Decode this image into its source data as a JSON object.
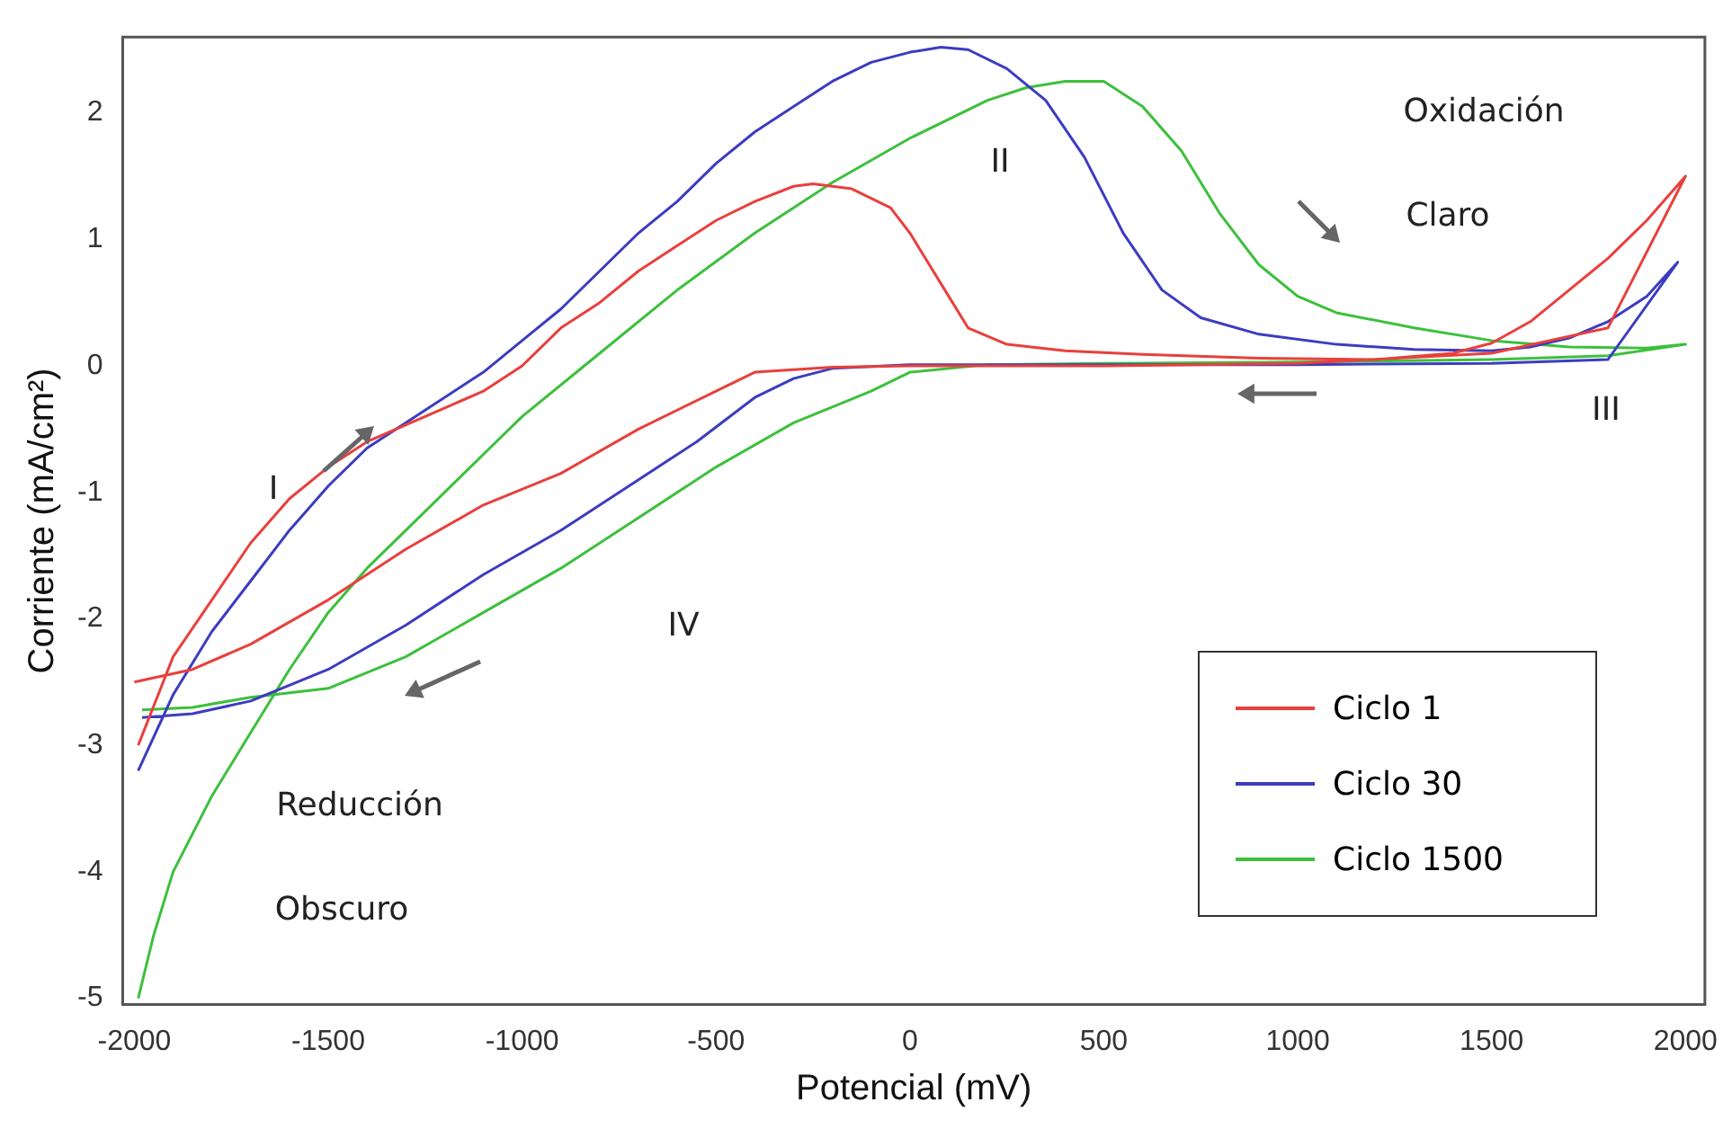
{
  "chart_data": {
    "type": "line",
    "xlabel": "Potencial (mV)",
    "ylabel": "Corriente (mA/cm²)",
    "xlim": [
      -2030,
      2050
    ],
    "ylim": [
      -5.05,
      2.6
    ],
    "xticks": [
      -2000,
      -1500,
      -1000,
      -500,
      0,
      500,
      1000,
      1500,
      2000
    ],
    "yticks": [
      -5,
      -4,
      -3,
      -2,
      -1,
      0,
      1,
      2
    ],
    "grid": false,
    "legend": "bottom right",
    "marker": "none",
    "line_style": "solid",
    "series": [
      {
        "name": "Ciclo 1",
        "color": "#e8403c",
        "x": [
          -1990,
          -1900,
          -1800,
          -1700,
          -1600,
          -1500,
          -1400,
          -1250,
          -1100,
          -1000,
          -900,
          -800,
          -700,
          -600,
          -500,
          -400,
          -300,
          -250,
          -150,
          -50,
          0,
          50,
          100,
          150,
          250,
          400,
          600,
          900,
          1200,
          1400,
          1500,
          1600,
          1700,
          1800,
          1900,
          2000,
          1800,
          1500,
          1000,
          500,
          0,
          -200,
          -400,
          -500,
          -700,
          -900,
          -1100,
          -1300,
          -1500,
          -1700,
          -1850,
          -2000
        ],
        "values": [
          -3.0,
          -2.3,
          -1.85,
          -1.4,
          -1.05,
          -0.8,
          -0.6,
          -0.4,
          -0.2,
          0.0,
          0.3,
          0.5,
          0.75,
          0.95,
          1.15,
          1.3,
          1.42,
          1.44,
          1.4,
          1.25,
          1.05,
          0.8,
          0.55,
          0.3,
          0.17,
          0.12,
          0.09,
          0.06,
          0.05,
          0.1,
          0.18,
          0.35,
          0.6,
          0.85,
          1.15,
          1.5,
          0.3,
          0.1,
          0.02,
          0.0,
          0.0,
          -0.01,
          -0.05,
          -0.2,
          -0.5,
          -0.85,
          -1.1,
          -1.45,
          -1.85,
          -2.2,
          -2.4,
          -2.5
        ]
      },
      {
        "name": "Ciclo 30",
        "color": "#3c3cc0",
        "x": [
          -1990,
          -1900,
          -1800,
          -1700,
          -1600,
          -1500,
          -1400,
          -1250,
          -1100,
          -1000,
          -900,
          -800,
          -700,
          -600,
          -500,
          -400,
          -300,
          -200,
          -100,
          0,
          80,
          150,
          250,
          350,
          450,
          550,
          650,
          750,
          900,
          1100,
          1300,
          1500,
          1600,
          1700,
          1800,
          1900,
          1980,
          1800,
          1500,
          1000,
          500,
          0,
          -200,
          -300,
          -400,
          -550,
          -700,
          -900,
          -1100,
          -1300,
          -1500,
          -1700,
          -1850,
          -1980
        ],
        "values": [
          -3.2,
          -2.6,
          -2.1,
          -1.7,
          -1.3,
          -0.95,
          -0.65,
          -0.35,
          -0.05,
          0.2,
          0.45,
          0.75,
          1.05,
          1.3,
          1.6,
          1.85,
          2.05,
          2.25,
          2.4,
          2.48,
          2.52,
          2.5,
          2.35,
          2.1,
          1.65,
          1.05,
          0.6,
          0.38,
          0.25,
          0.17,
          0.13,
          0.12,
          0.15,
          0.22,
          0.35,
          0.55,
          0.82,
          0.05,
          0.02,
          0.01,
          0.01,
          0.01,
          -0.02,
          -0.1,
          -0.25,
          -0.6,
          -0.9,
          -1.3,
          -1.65,
          -2.05,
          -2.4,
          -2.65,
          -2.75,
          -2.78
        ]
      },
      {
        "name": "Ciclo 1500",
        "color": "#3cc03c",
        "x": [
          -1990,
          -1950,
          -1900,
          -1800,
          -1700,
          -1600,
          -1500,
          -1400,
          -1250,
          -1100,
          -1000,
          -800,
          -600,
          -400,
          -200,
          0,
          200,
          300,
          400,
          500,
          600,
          700,
          800,
          900,
          1000,
          1100,
          1300,
          1500,
          1700,
          1900,
          2000,
          1800,
          1500,
          1000,
          500,
          200,
          0,
          -100,
          -300,
          -500,
          -700,
          -900,
          -1100,
          -1300,
          -1500,
          -1700,
          -1850,
          -1980
        ],
        "values": [
          -5.0,
          -4.5,
          -4.0,
          -3.4,
          -2.9,
          -2.4,
          -1.95,
          -1.6,
          -1.15,
          -0.7,
          -0.4,
          0.1,
          0.6,
          1.05,
          1.45,
          1.8,
          2.1,
          2.2,
          2.25,
          2.25,
          2.05,
          1.7,
          1.2,
          0.8,
          0.55,
          0.42,
          0.3,
          0.2,
          0.15,
          0.14,
          0.17,
          0.08,
          0.05,
          0.03,
          0.02,
          0.01,
          -0.05,
          -0.2,
          -0.45,
          -0.8,
          -1.2,
          -1.6,
          -1.95,
          -2.3,
          -2.55,
          -2.62,
          -2.7,
          -2.72
        ]
      }
    ],
    "annotations": [
      "Oxidación",
      "Claro",
      "II",
      "III",
      "I",
      "IV",
      "Reducción",
      "Obscuro"
    ]
  }
}
